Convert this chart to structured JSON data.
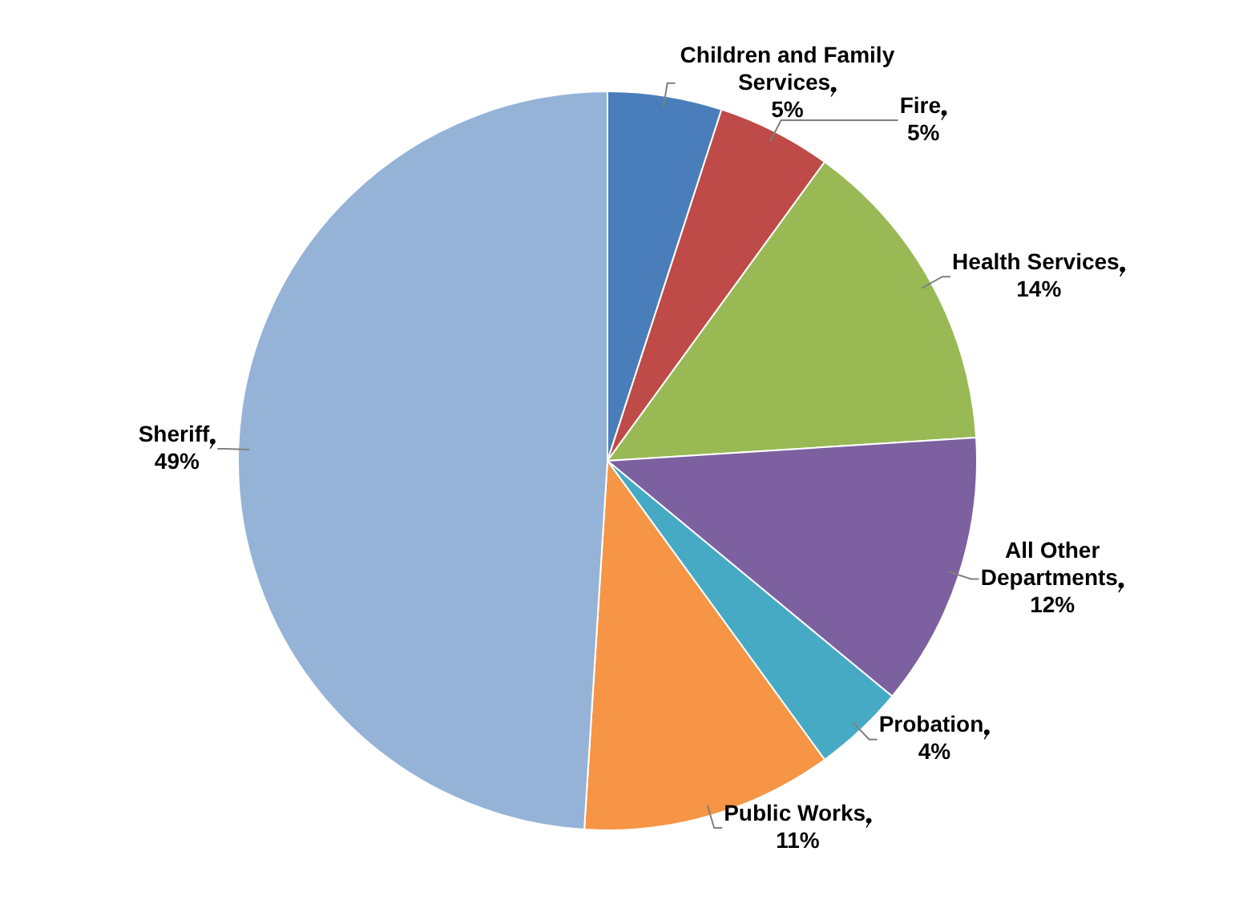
{
  "chart_data": {
    "type": "pie",
    "categories": [
      "Children and Family Services",
      "Fire",
      "Health Services",
      "All Other Departments",
      "Probation",
      "Public Works",
      "Sheriff"
    ],
    "values": [
      5,
      5,
      14,
      12,
      4,
      11,
      49
    ],
    "colors": [
      "#4a7ebb",
      "#be4b48",
      "#98b954",
      "#7d60a0",
      "#46aac5",
      "#f69545",
      "#95b3d7"
    ],
    "value_labels": [
      "5%",
      "5%",
      "14%",
      "12%",
      "4%",
      "11%",
      "49%"
    ],
    "legend": false
  }
}
